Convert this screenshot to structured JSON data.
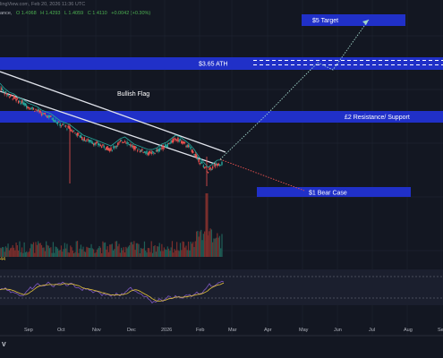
{
  "header": {
    "source": "lingView.com, Feb 20, 2026 11:36 UTC",
    "ohlc_prefix": "ance,",
    "o": "O 1.4068",
    "h": "H 1.4293",
    "l": "L 1.4059",
    "c": "C 1.4110",
    "change": "+0.0042 (+0.30%)"
  },
  "rsi_tag": "44",
  "logo": "V",
  "annotations": {
    "target": "$5 Target",
    "ath": "$3.65 ATH",
    "resistance": "£2 Resistance/ Support",
    "bear": "$1 Bear Case",
    "flag": "Bullish Flag"
  },
  "colors": {
    "background": "#131722",
    "band": "#2030c8",
    "up": "#26a69a",
    "down": "#ef5350",
    "channel": "#e0e3eb",
    "projection_up": "#9fd3c7",
    "projection_down": "#ef5350",
    "rsi": "#7e57c2",
    "rsi_ma": "#e6c53a"
  },
  "chart_data": {
    "type": "line",
    "title": "",
    "x_ticks": [
      "Sep",
      "Oct",
      "Nov",
      "Dec",
      "2026",
      "Feb",
      "Mar",
      "Apr",
      "May",
      "Jun",
      "Jul",
      "Aug",
      "Se"
    ],
    "levels": [
      {
        "name": "$5 Target",
        "value": 5
      },
      {
        "name": "$3.65 ATH",
        "value": 3.65
      },
      {
        "name": "£2 Resistance/ Support",
        "value": 2
      },
      {
        "name": "$1 Bear Case",
        "value": 1
      }
    ],
    "series": [
      {
        "values": [
          3.55,
          3.4,
          3.3,
          3.25,
          3.15,
          3.1,
          3.0,
          2.95,
          2.9,
          2.8,
          2.75,
          2.7,
          2.6,
          2.5,
          2.45,
          2.4,
          2.3,
          2.2,
          2.1,
          2.05,
          2.0,
          1.95,
          1.9,
          1.85,
          1.8,
          1.9,
          2.0,
          2.05,
          1.95,
          1.85,
          1.8,
          1.75,
          1.7,
          1.7,
          1.75,
          1.85,
          1.9,
          2.0,
          2.1,
          2.05,
          1.95,
          1.85,
          1.7,
          1.5,
          1.35,
          1.2,
          1.3,
          1.4,
          1.41
        ]
      }
    ],
    "grid": true,
    "legend": "none"
  }
}
